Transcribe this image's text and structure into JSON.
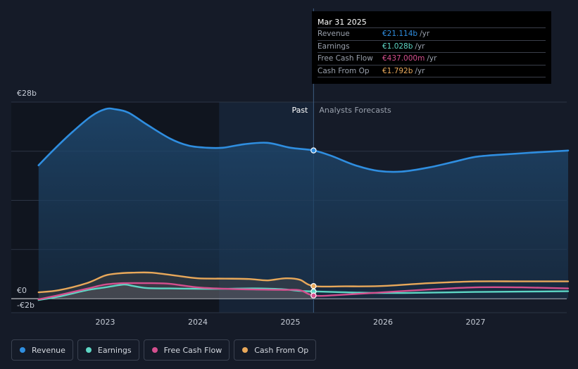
{
  "chart_data": {
    "type": "line",
    "y_axis": {
      "top_label": "€28b",
      "zero_label": "€0",
      "bottom_label": "-€2b",
      "ylim": [
        -2,
        28
      ]
    },
    "x_axis": {
      "ticks": [
        "2023",
        "2024",
        "2025",
        "2026",
        "2027"
      ],
      "xlim": [
        2022.25,
        2028.0
      ]
    },
    "divider": {
      "x": 2025.25,
      "past_label": "Past",
      "forecast_label": "Analysts Forecasts"
    },
    "series": [
      {
        "name": "Revenue",
        "color": "#2f8ee0",
        "x": [
          2022.28,
          2022.45,
          2022.65,
          2022.85,
          2023.0,
          2023.1,
          2023.25,
          2023.45,
          2023.7,
          2023.9,
          2024.1,
          2024.27,
          2024.5,
          2024.75,
          2025.0,
          2025.25,
          2025.45,
          2025.7,
          2025.95,
          2026.2,
          2026.5,
          2026.8,
          2027.0,
          2027.25,
          2027.6,
          2028.0
        ],
        "y": [
          19.0,
          21.3,
          23.8,
          26.0,
          27.0,
          27.0,
          26.5,
          24.8,
          22.8,
          21.8,
          21.5,
          21.5,
          22.0,
          22.2,
          21.5,
          21.114,
          20.3,
          19.0,
          18.2,
          18.1,
          18.7,
          19.6,
          20.2,
          20.5,
          20.8,
          21.1
        ]
      },
      {
        "name": "Earnings",
        "color": "#5ed6c4",
        "x": [
          2022.28,
          2022.5,
          2022.8,
          2023.0,
          2023.2,
          2023.3,
          2023.45,
          2023.7,
          2024.0,
          2024.3,
          2024.6,
          2024.9,
          2025.1,
          2025.25,
          2025.6,
          2026.0,
          2026.5,
          2027.0,
          2027.5,
          2028.0
        ],
        "y": [
          -0.2,
          0.3,
          1.2,
          1.6,
          2.0,
          1.8,
          1.5,
          1.45,
          1.4,
          1.4,
          1.45,
          1.35,
          1.1,
          1.028,
          0.9,
          0.8,
          0.85,
          0.95,
          1.0,
          1.05
        ]
      },
      {
        "name": "Free Cash Flow",
        "color": "#d44f8e",
        "x": [
          2022.28,
          2022.5,
          2022.8,
          2023.0,
          2023.2,
          2023.5,
          2023.7,
          2024.0,
          2024.3,
          2024.6,
          2024.9,
          2025.1,
          2025.25,
          2025.5,
          2026.0,
          2026.5,
          2027.0,
          2027.5,
          2028.0
        ],
        "y": [
          -0.1,
          0.5,
          1.4,
          2.0,
          2.2,
          2.2,
          2.1,
          1.6,
          1.4,
          1.3,
          1.25,
          1.2,
          0.437,
          0.5,
          0.9,
          1.3,
          1.6,
          1.6,
          1.45
        ]
      },
      {
        "name": "Cash From Op",
        "color": "#e8a85a",
        "x": [
          2022.28,
          2022.5,
          2022.8,
          2023.0,
          2023.15,
          2023.3,
          2023.5,
          2023.75,
          2024.0,
          2024.3,
          2024.55,
          2024.75,
          2024.95,
          2025.1,
          2025.25,
          2025.6,
          2026.0,
          2026.5,
          2027.0,
          2027.5,
          2028.0
        ],
        "y": [
          0.9,
          1.2,
          2.2,
          3.3,
          3.6,
          3.7,
          3.7,
          3.3,
          2.9,
          2.85,
          2.8,
          2.6,
          2.9,
          2.7,
          1.792,
          1.75,
          1.8,
          2.2,
          2.45,
          2.45,
          2.45
        ]
      }
    ]
  },
  "tooltip": {
    "date": "Mar 31 2025",
    "rows": [
      {
        "label": "Revenue",
        "value": "€21.114b",
        "unit": "/yr",
        "color": "#2f8ee0"
      },
      {
        "label": "Earnings",
        "value": "€1.028b",
        "unit": "/yr",
        "color": "#5ed6c4"
      },
      {
        "label": "Free Cash Flow",
        "value": "€437.000m",
        "unit": "/yr",
        "color": "#d44f8e"
      },
      {
        "label": "Cash From Op",
        "value": "€1.792b",
        "unit": "/yr",
        "color": "#e8a85a"
      }
    ]
  },
  "legend": [
    {
      "label": "Revenue",
      "color": "#2f8ee0"
    },
    {
      "label": "Earnings",
      "color": "#5ed6c4"
    },
    {
      "label": "Free Cash Flow",
      "color": "#d44f8e"
    },
    {
      "label": "Cash From Op",
      "color": "#e8a85a"
    }
  ]
}
